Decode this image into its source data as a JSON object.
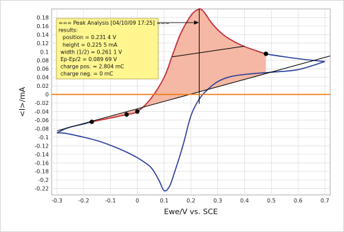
{
  "chart_data": {
    "type": "line",
    "xlabel": "Ewe/V vs. SCE",
    "ylabel": "<I>/mA",
    "xlim": [
      -0.32,
      0.72
    ],
    "ylim": [
      -0.235,
      0.2
    ],
    "xticks": [
      "-0.3",
      "-0.2",
      "-0.1",
      "0",
      "0.1",
      "0.2",
      "0.3",
      "0.4",
      "0.5",
      "0.6",
      "0.7"
    ],
    "yticks": [
      "0.18",
      "0.16",
      "0.14",
      "0.12",
      "0.1",
      "0.08",
      "0.06",
      "0.04",
      "0.02",
      "0",
      "-0.02",
      "-0.04",
      "-0.06",
      "-0.08",
      "-0.1",
      "-0.12",
      "-0.14",
      "-0.16",
      "-0.18",
      "-0.2",
      "-0.22"
    ],
    "grid": true,
    "colors": {
      "voltammogram": "#2a3f9a",
      "peak_segment": "#d03036",
      "peak_fill": "#f5b8a4",
      "zero_line": "#ef7a10",
      "baseline": "#000000",
      "annotation_bg": "#fff68f",
      "annotation_border": "#b0a040"
    },
    "series": [
      {
        "role": "voltammogram-forward",
        "x": [
          -0.3,
          -0.26,
          -0.2,
          -0.17,
          -0.1,
          -0.04,
          0.0,
          0.05,
          0.1,
          0.13,
          0.16,
          0.19,
          0.21,
          0.225,
          0.235,
          0.25,
          0.28,
          0.32,
          0.36,
          0.4,
          0.44,
          0.48,
          0.55,
          0.62,
          0.7
        ],
        "y": [
          -0.09,
          -0.078,
          -0.069,
          -0.064,
          -0.055,
          -0.047,
          -0.04,
          -0.01,
          0.04,
          0.09,
          0.14,
          0.175,
          0.192,
          0.198,
          0.2,
          0.192,
          0.165,
          0.14,
          0.124,
          0.112,
          0.103,
          0.095,
          0.088,
          0.082,
          0.077
        ]
      },
      {
        "role": "voltammogram-reverse",
        "x": [
          0.7,
          0.6,
          0.5,
          0.42,
          0.35,
          0.3,
          0.26,
          0.23,
          0.2,
          0.17,
          0.14,
          0.12,
          0.1,
          0.08,
          0.05,
          0.0,
          -0.05,
          -0.1,
          -0.15,
          -0.2,
          -0.25,
          -0.28,
          -0.3
        ],
        "y": [
          0.077,
          0.058,
          0.052,
          0.048,
          0.042,
          0.03,
          0.01,
          -0.012,
          -0.05,
          -0.12,
          -0.18,
          -0.215,
          -0.225,
          -0.2,
          -0.17,
          -0.148,
          -0.132,
          -0.119,
          -0.108,
          -0.1,
          -0.093,
          -0.09,
          -0.09
        ]
      }
    ],
    "baseline": {
      "x": [
        -0.3,
        0.72
      ],
      "y": [
        -0.085,
        0.09
      ]
    },
    "peak_region": {
      "x_start": -0.17,
      "x_end": 0.48
    },
    "peak_vertical": {
      "x": 0.231,
      "y_top": 0.2,
      "y_bottom": -0.022
    },
    "width_line": {
      "x": [
        0.13,
        0.4
      ],
      "y": [
        0.088,
        0.113
      ]
    },
    "markers": [
      {
        "x": -0.17,
        "y": -0.064
      },
      {
        "x": -0.04,
        "y": -0.047
      },
      {
        "x": 0.0,
        "y": -0.04
      },
      {
        "x": 0.48,
        "y": 0.095
      }
    ],
    "annotation": {
      "lines": [
        "=== Peak Analysis [04/10/09 17:25] ===",
        "results:",
        "position = 0.231 4 V",
        "height = 0.225 5 mA",
        "width (1/2) = 0.261 1 V",
        "Ep-Ep/2 = 0.089 69 V",
        "charge pos. = 2.804 mC",
        "charge neg. = 0 mC"
      ],
      "arrow_to": {
        "x": 0.23,
        "y": 0.168
      }
    }
  }
}
